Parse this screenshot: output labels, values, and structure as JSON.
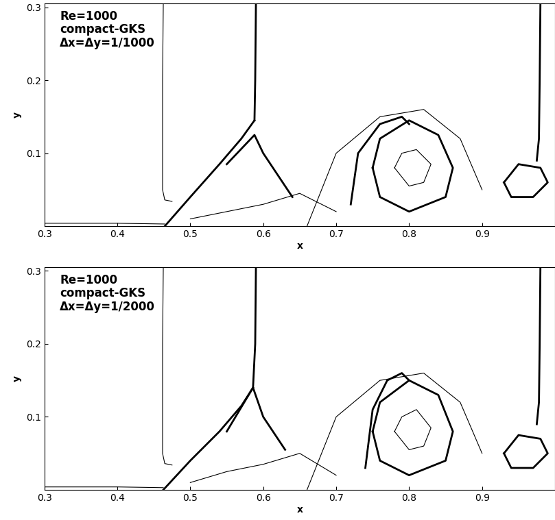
{
  "chart_data": [
    {
      "type": "line",
      "annotation": "Re=1000\ncompact-GKS\nΔx=Δy=1/1000",
      "x_label": "x",
      "y_label": "y",
      "xlim": [
        0.3,
        1.0
      ],
      "xticks": [
        0.3,
        0.4,
        0.5,
        0.6,
        0.7,
        0.8,
        0.9
      ],
      "ylim": [
        0.0,
        0.305
      ],
      "yticks": [
        0.1,
        0.2,
        0.3
      ],
      "series": [
        {
          "color": "#000000",
          "line_style": "thin",
          "x": [
            0.463,
            0.462,
            0.462,
            0.465,
            0.475
          ],
          "values": [
            0.305,
            0.2,
            0.05,
            0.036,
            0.034
          ]
        },
        {
          "color": "#000000",
          "line_style": "thick",
          "x": [
            0.59,
            0.589,
            0.588
          ],
          "values": [
            0.305,
            0.2,
            0.145
          ]
        },
        {
          "color": "#000000",
          "line_style": "thick",
          "x": [
            0.465,
            0.5,
            0.54,
            0.57,
            0.588
          ],
          "values": [
            0.0,
            0.04,
            0.085,
            0.12,
            0.145
          ]
        },
        {
          "color": "#000000",
          "line_style": "thick",
          "x": [
            0.55,
            0.588,
            0.6,
            0.62,
            0.64
          ],
          "values": [
            0.085,
            0.125,
            0.1,
            0.07,
            0.04
          ]
        },
        {
          "color": "#000000",
          "line_style": "thin",
          "x": [
            0.3,
            0.4,
            0.465
          ],
          "values": [
            0.004,
            0.004,
            0.003
          ]
        },
        {
          "color": "#000000",
          "line_style": "thin",
          "x": [
            0.66,
            0.7,
            0.76,
            0.82,
            0.87,
            0.9
          ],
          "values": [
            0.0,
            0.1,
            0.15,
            0.16,
            0.12,
            0.05
          ]
        },
        {
          "color": "#000000",
          "line_style": "thick",
          "x": [
            0.75,
            0.76,
            0.8,
            0.84,
            0.86,
            0.85,
            0.8,
            0.76,
            0.75
          ],
          "values": [
            0.08,
            0.12,
            0.145,
            0.125,
            0.08,
            0.04,
            0.02,
            0.04,
            0.08
          ]
        },
        {
          "color": "#000000",
          "line_style": "thin",
          "x": [
            0.78,
            0.79,
            0.81,
            0.83,
            0.82,
            0.8,
            0.78
          ],
          "values": [
            0.08,
            0.1,
            0.105,
            0.085,
            0.06,
            0.055,
            0.08
          ]
        },
        {
          "color": "#000000",
          "line_style": "thick",
          "x": [
            0.72,
            0.73,
            0.76,
            0.79,
            0.8
          ],
          "values": [
            0.03,
            0.1,
            0.14,
            0.15,
            0.14
          ]
        },
        {
          "color": "#000000",
          "line_style": "thick",
          "x": [
            0.98,
            0.979,
            0.978,
            0.975
          ],
          "values": [
            0.305,
            0.2,
            0.12,
            0.09
          ]
        },
        {
          "color": "#000000",
          "line_style": "thick",
          "x": [
            0.93,
            0.95,
            0.98,
            0.99,
            0.97,
            0.94,
            0.93
          ],
          "values": [
            0.06,
            0.085,
            0.08,
            0.06,
            0.04,
            0.04,
            0.06
          ]
        },
        {
          "color": "#000000",
          "line_style": "thin",
          "x": [
            0.5,
            0.55,
            0.6,
            0.65,
            0.7
          ],
          "values": [
            0.01,
            0.02,
            0.03,
            0.045,
            0.02
          ]
        }
      ]
    },
    {
      "type": "line",
      "annotation": "Re=1000\ncompact-GKS\nΔx=Δy=1/2000",
      "x_label": "x",
      "y_label": "y",
      "xlim": [
        0.3,
        1.0
      ],
      "xticks": [
        0.3,
        0.4,
        0.5,
        0.6,
        0.7,
        0.8,
        0.9
      ],
      "ylim": [
        0.0,
        0.305
      ],
      "yticks": [
        0.1,
        0.2,
        0.3
      ],
      "series": [
        {
          "color": "#000000",
          "line_style": "thin",
          "x": [
            0.463,
            0.462,
            0.462,
            0.465,
            0.475
          ],
          "values": [
            0.305,
            0.2,
            0.05,
            0.036,
            0.034
          ]
        },
        {
          "color": "#000000",
          "line_style": "thick",
          "x": [
            0.59,
            0.589,
            0.586
          ],
          "values": [
            0.305,
            0.2,
            0.14
          ]
        },
        {
          "color": "#000000",
          "line_style": "thick",
          "x": [
            0.463,
            0.5,
            0.54,
            0.57,
            0.586
          ],
          "values": [
            0.0,
            0.04,
            0.08,
            0.115,
            0.14
          ]
        },
        {
          "color": "#000000",
          "line_style": "thick",
          "x": [
            0.55,
            0.586,
            0.6,
            0.62,
            0.63
          ],
          "values": [
            0.08,
            0.14,
            0.1,
            0.07,
            0.055
          ]
        },
        {
          "color": "#000000",
          "line_style": "thin",
          "x": [
            0.3,
            0.4,
            0.463
          ],
          "values": [
            0.004,
            0.004,
            0.003
          ]
        },
        {
          "color": "#000000",
          "line_style": "thin",
          "x": [
            0.66,
            0.7,
            0.76,
            0.82,
            0.87,
            0.9
          ],
          "values": [
            0.0,
            0.1,
            0.15,
            0.16,
            0.12,
            0.05
          ]
        },
        {
          "color": "#000000",
          "line_style": "thick",
          "x": [
            0.75,
            0.76,
            0.8,
            0.84,
            0.86,
            0.85,
            0.8,
            0.76,
            0.75
          ],
          "values": [
            0.08,
            0.12,
            0.15,
            0.13,
            0.08,
            0.04,
            0.02,
            0.04,
            0.08
          ]
        },
        {
          "color": "#000000",
          "line_style": "thin",
          "x": [
            0.78,
            0.79,
            0.81,
            0.83,
            0.82,
            0.8,
            0.78
          ],
          "values": [
            0.08,
            0.1,
            0.11,
            0.085,
            0.06,
            0.055,
            0.08
          ]
        },
        {
          "color": "#000000",
          "line_style": "thick",
          "x": [
            0.74,
            0.75,
            0.77,
            0.79,
            0.8
          ],
          "values": [
            0.03,
            0.11,
            0.15,
            0.16,
            0.15
          ]
        },
        {
          "color": "#000000",
          "line_style": "thick",
          "x": [
            0.98,
            0.979,
            0.978,
            0.975
          ],
          "values": [
            0.305,
            0.2,
            0.12,
            0.09
          ]
        },
        {
          "color": "#000000",
          "line_style": "thick",
          "x": [
            0.93,
            0.95,
            0.98,
            0.99,
            0.97,
            0.94,
            0.93
          ],
          "values": [
            0.05,
            0.075,
            0.07,
            0.05,
            0.03,
            0.03,
            0.05
          ]
        },
        {
          "color": "#000000",
          "line_style": "thin",
          "x": [
            0.5,
            0.55,
            0.6,
            0.65,
            0.7
          ],
          "values": [
            0.01,
            0.025,
            0.035,
            0.05,
            0.02
          ]
        }
      ]
    }
  ]
}
